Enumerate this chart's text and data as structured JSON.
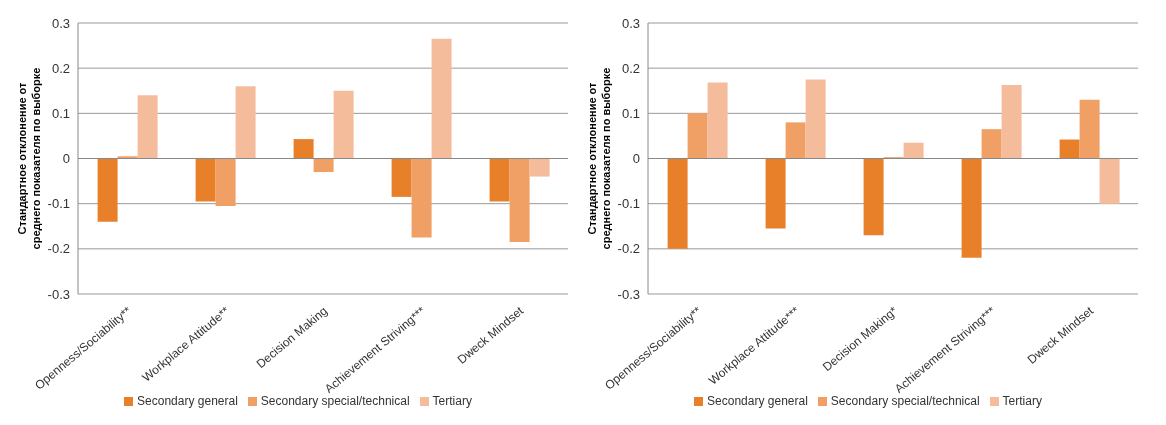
{
  "chart_data": [
    {
      "type": "bar",
      "ylabel": "Стандартное отклонение от среднего показателя по выборке",
      "categories": [
        "Openness/Sociability**",
        "Workplace Attitude**",
        "Decision Making",
        "Achievement Striving***",
        "Dweck Mindset"
      ],
      "series": [
        {
          "name": "Secondary general",
          "color": "#e8802a",
          "values": [
            -0.14,
            -0.095,
            0.043,
            -0.085,
            -0.095
          ]
        },
        {
          "name": "Secondary special/technical",
          "color": "#f0a064",
          "values": [
            0.005,
            -0.105,
            -0.03,
            -0.175,
            -0.185
          ]
        },
        {
          "name": "Tertiary",
          "color": "#f5bc9c",
          "values": [
            0.14,
            0.16,
            0.15,
            0.265,
            -0.04
          ]
        }
      ],
      "ylim": [
        -0.3,
        0.3
      ],
      "yticks": [
        -0.3,
        -0.2,
        -0.1,
        0,
        0.1,
        0.2,
        0.3
      ],
      "grid": "y",
      "legend": "bottom"
    },
    {
      "type": "bar",
      "ylabel": "Стандартное отклонение от среднего показателя по выборке",
      "categories": [
        "Openness/Sociability**",
        "Workplace Attitude***",
        "Decision Making*",
        "Achievement Striving***",
        "Dweck Mindset"
      ],
      "series": [
        {
          "name": "Secondary general",
          "color": "#e8802a",
          "values": [
            -0.2,
            -0.155,
            -0.17,
            -0.22,
            0.042
          ]
        },
        {
          "name": "Secondary special/technical",
          "color": "#f0a064",
          "values": [
            0.1,
            0.08,
            0.003,
            0.065,
            0.13
          ]
        },
        {
          "name": "Tertiary",
          "color": "#f5bc9c",
          "values": [
            0.168,
            0.175,
            0.035,
            0.163,
            -0.1
          ]
        }
      ],
      "ylim": [
        -0.3,
        0.3
      ],
      "yticks": [
        -0.3,
        -0.2,
        -0.1,
        0,
        0.1,
        0.2,
        0.3
      ],
      "grid": "y",
      "legend": "bottom"
    }
  ]
}
